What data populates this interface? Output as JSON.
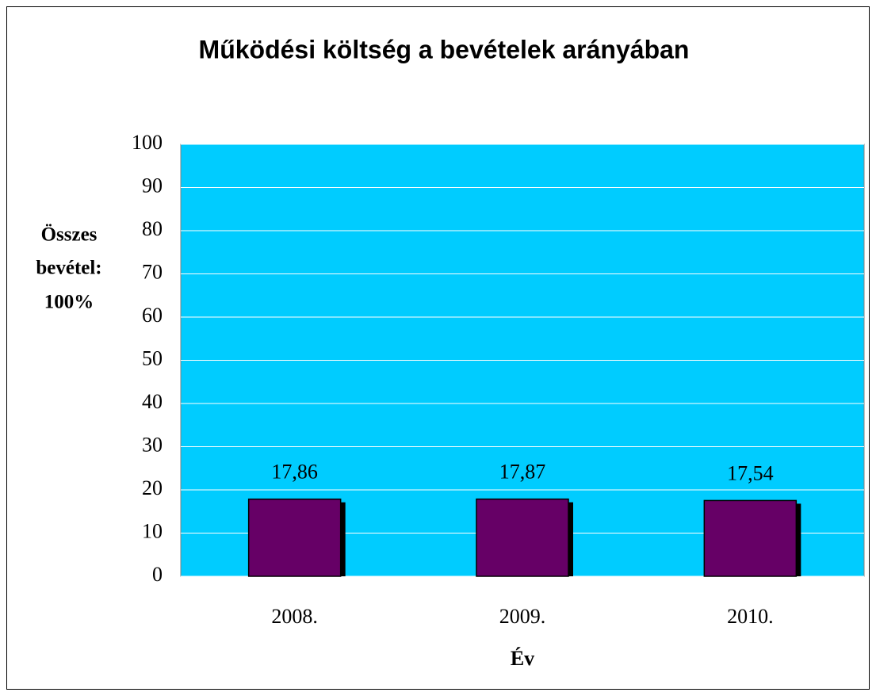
{
  "chart_data": {
    "type": "bar",
    "title": "Működési költség a bevételek arányában",
    "y_label": [
      "Összes",
      "bevétel:",
      "100%"
    ],
    "x_label": "Év",
    "categories": [
      "2008.",
      "2009.",
      "2010."
    ],
    "values": [
      17.86,
      17.87,
      17.54
    ],
    "value_labels": [
      "17,86",
      "17,87",
      "17,54"
    ],
    "color": "#660066",
    "shadow_color": "#000000",
    "plot_background": "#00ccff",
    "ylim": [
      0,
      100
    ],
    "yticks": [
      0,
      10,
      20,
      30,
      40,
      50,
      60,
      70,
      80,
      90,
      100
    ],
    "grid": true
  }
}
